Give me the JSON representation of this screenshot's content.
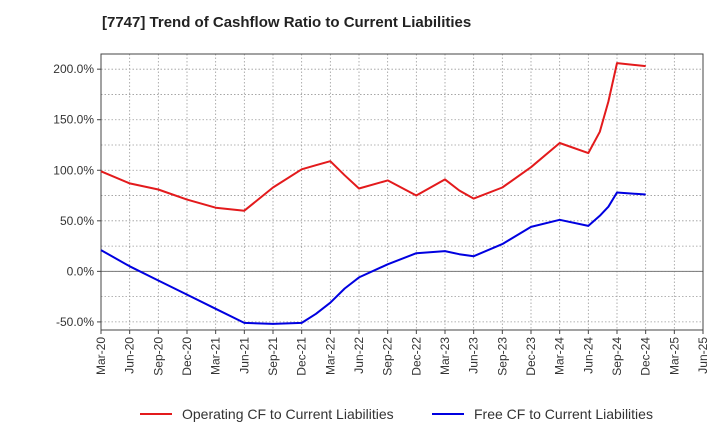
{
  "chart_data": {
    "type": "line",
    "title": "[7747]  Trend of Cashflow Ratio to Current Liabilities",
    "xlabel": "",
    "ylabel": "",
    "x_ticks": [
      "Mar-20",
      "Jun-20",
      "Sep-20",
      "Dec-20",
      "Mar-21",
      "Jun-21",
      "Sep-21",
      "Dec-21",
      "Mar-22",
      "Jun-22",
      "Sep-22",
      "Dec-22",
      "Mar-23",
      "Jun-23",
      "Sep-23",
      "Dec-23",
      "Mar-24",
      "Jun-24",
      "Sep-24",
      "Dec-24",
      "Mar-25",
      "Jun-25"
    ],
    "y_ticks": [
      "-50.0%",
      "0.0%",
      "50.0%",
      "100.0%",
      "150.0%",
      "200.0%"
    ],
    "y_tick_values": [
      -50,
      0,
      50,
      100,
      150,
      200
    ],
    "ylim": [
      -58,
      215
    ],
    "x_range": [
      0,
      21
    ],
    "grid": true,
    "legend_position": "bottom",
    "series": [
      {
        "name": "Operating CF to Current Liabilities",
        "color": "#e31a1c",
        "x": [
          0,
          1,
          2,
          3,
          4,
          5,
          6,
          7,
          7.5,
          8,
          8.5,
          9,
          10,
          11,
          12,
          12.5,
          13,
          14,
          15,
          16,
          17,
          17.4,
          17.7,
          18,
          19
        ],
        "values": [
          99,
          87,
          81,
          71,
          63,
          60,
          83,
          101,
          105,
          109,
          95,
          82,
          90,
          75,
          91,
          80,
          72,
          83,
          103,
          127,
          117,
          138,
          168,
          206,
          203
        ]
      },
      {
        "name": "Free CF to Current Liabilities",
        "color": "#0000e0",
        "x": [
          0,
          1,
          2,
          3,
          4,
          5,
          6,
          7,
          7.5,
          8,
          8.5,
          9,
          10,
          11,
          12,
          12.5,
          13,
          14,
          15,
          16,
          17,
          17.4,
          17.7,
          18,
          19
        ],
        "values": [
          21,
          5,
          -9,
          -23,
          -37,
          -51,
          -52,
          -51,
          -42,
          -31,
          -17,
          -6,
          7,
          18,
          20,
          17,
          15,
          27,
          44,
          51,
          45,
          55,
          64,
          78,
          76
        ]
      }
    ]
  }
}
